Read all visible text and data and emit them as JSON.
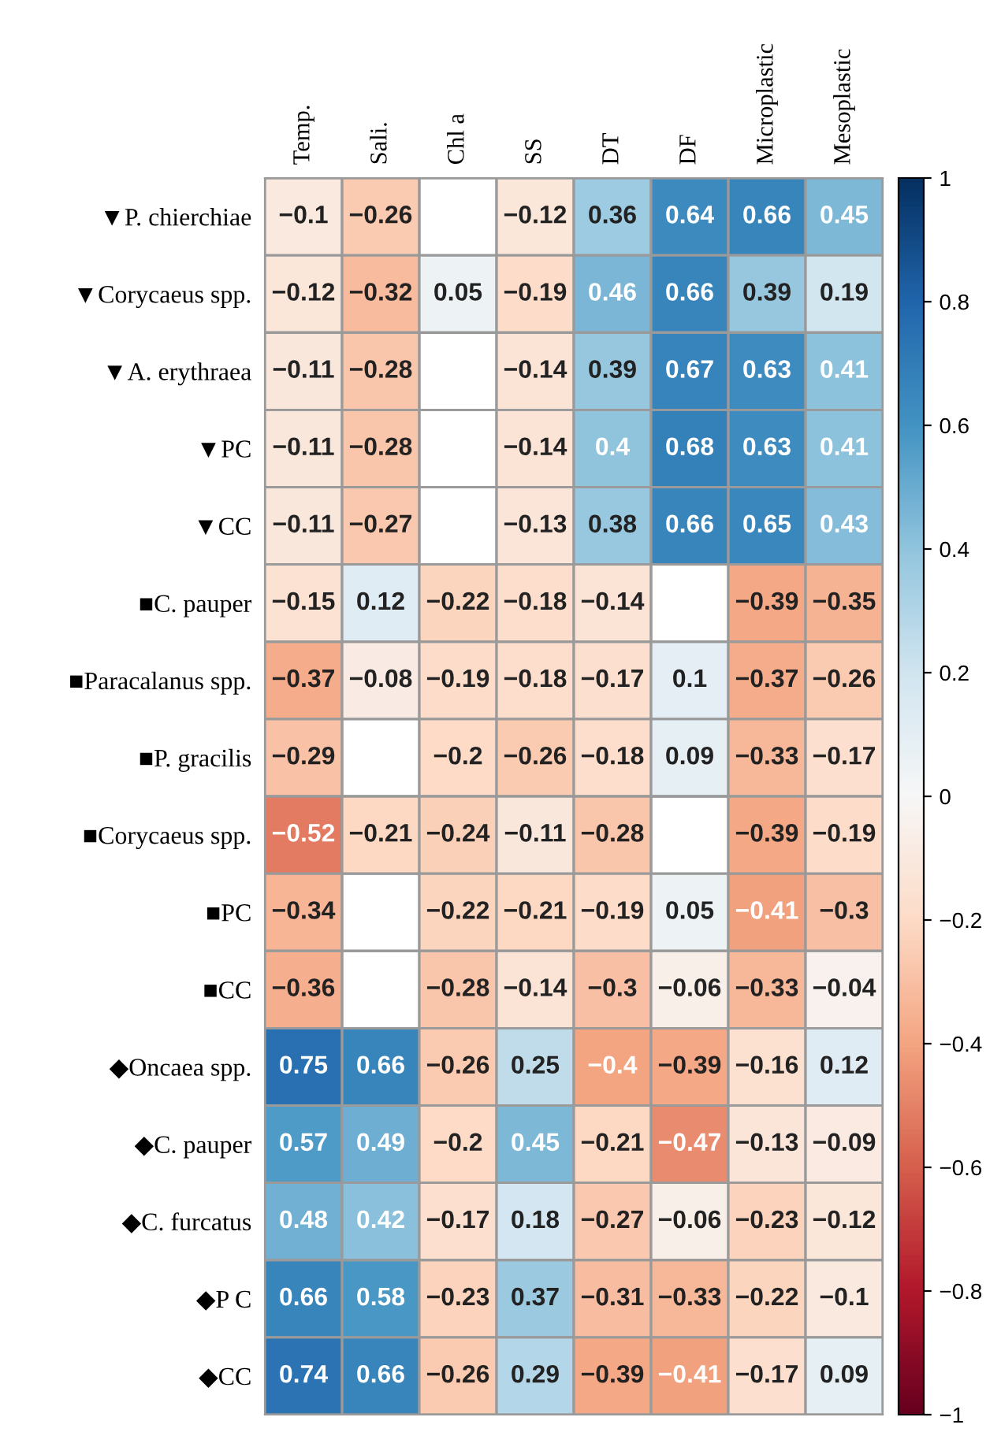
{
  "chart_data": {
    "type": "heatmap",
    "categories": [
      "Temp.",
      "Sali.",
      "Chl a",
      "SS",
      "DT",
      "DF",
      "Microplastic",
      "Mesoplastic"
    ],
    "y_categories": [
      "▼P. chierchiae",
      "▼Corycaeus spp.",
      "▼A. erythraea",
      "▼PC",
      "▼CC",
      "■C. pauper",
      "■Paracalanus spp.",
      "■P. gracilis",
      "■Corycaeus spp.",
      "■PC",
      "■CC",
      "◆Oncaea spp.",
      "◆C. pauper",
      "◆C. furcatus",
      "◆P C",
      "◆CC"
    ],
    "cells": [
      [
        -0.1,
        -0.26,
        null,
        -0.12,
        0.36,
        0.64,
        0.66,
        0.45
      ],
      [
        -0.12,
        -0.32,
        0.05,
        -0.19,
        0.46,
        0.66,
        0.39,
        0.19
      ],
      [
        -0.11,
        -0.28,
        null,
        -0.14,
        0.39,
        0.67,
        0.63,
        0.41
      ],
      [
        -0.11,
        -0.28,
        null,
        -0.14,
        0.4,
        0.68,
        0.63,
        0.41
      ],
      [
        -0.11,
        -0.27,
        null,
        -0.13,
        0.38,
        0.66,
        0.65,
        0.43
      ],
      [
        -0.15,
        0.12,
        -0.22,
        -0.18,
        -0.14,
        null,
        -0.39,
        -0.35
      ],
      [
        -0.37,
        -0.08,
        -0.19,
        -0.18,
        -0.17,
        0.1,
        -0.37,
        -0.26
      ],
      [
        -0.29,
        null,
        -0.2,
        -0.26,
        -0.18,
        0.09,
        -0.33,
        -0.17
      ],
      [
        -0.52,
        -0.21,
        -0.24,
        -0.11,
        -0.28,
        null,
        -0.39,
        -0.19
      ],
      [
        -0.34,
        null,
        -0.22,
        -0.21,
        -0.19,
        0.05,
        -0.41,
        -0.3
      ],
      [
        -0.36,
        null,
        -0.28,
        -0.14,
        -0.3,
        -0.06,
        -0.33,
        -0.04
      ],
      [
        0.75,
        0.66,
        -0.26,
        0.25,
        -0.4,
        -0.39,
        -0.16,
        0.12
      ],
      [
        0.57,
        0.49,
        -0.2,
        0.45,
        -0.21,
        -0.47,
        -0.13,
        -0.09
      ],
      [
        0.48,
        0.42,
        -0.17,
        0.18,
        -0.27,
        -0.06,
        -0.23,
        -0.12
      ],
      [
        0.66,
        0.58,
        -0.23,
        0.37,
        -0.31,
        -0.33,
        -0.22,
        -0.1
      ],
      [
        0.74,
        0.66,
        -0.26,
        0.29,
        -0.39,
        -0.41,
        -0.17,
        0.09
      ]
    ],
    "clim": [
      -1,
      1
    ],
    "cticks": [
      {
        "value": -1,
        "label": "−1"
      },
      {
        "value": -0.8,
        "label": "−0.8"
      },
      {
        "value": -0.6,
        "label": "−0.6"
      },
      {
        "value": -0.4,
        "label": "−0.4"
      },
      {
        "value": -0.2,
        "label": "−0.2"
      },
      0,
      0.2,
      0.4,
      0.6,
      0.8,
      1
    ],
    "data_labels": true
  }
}
